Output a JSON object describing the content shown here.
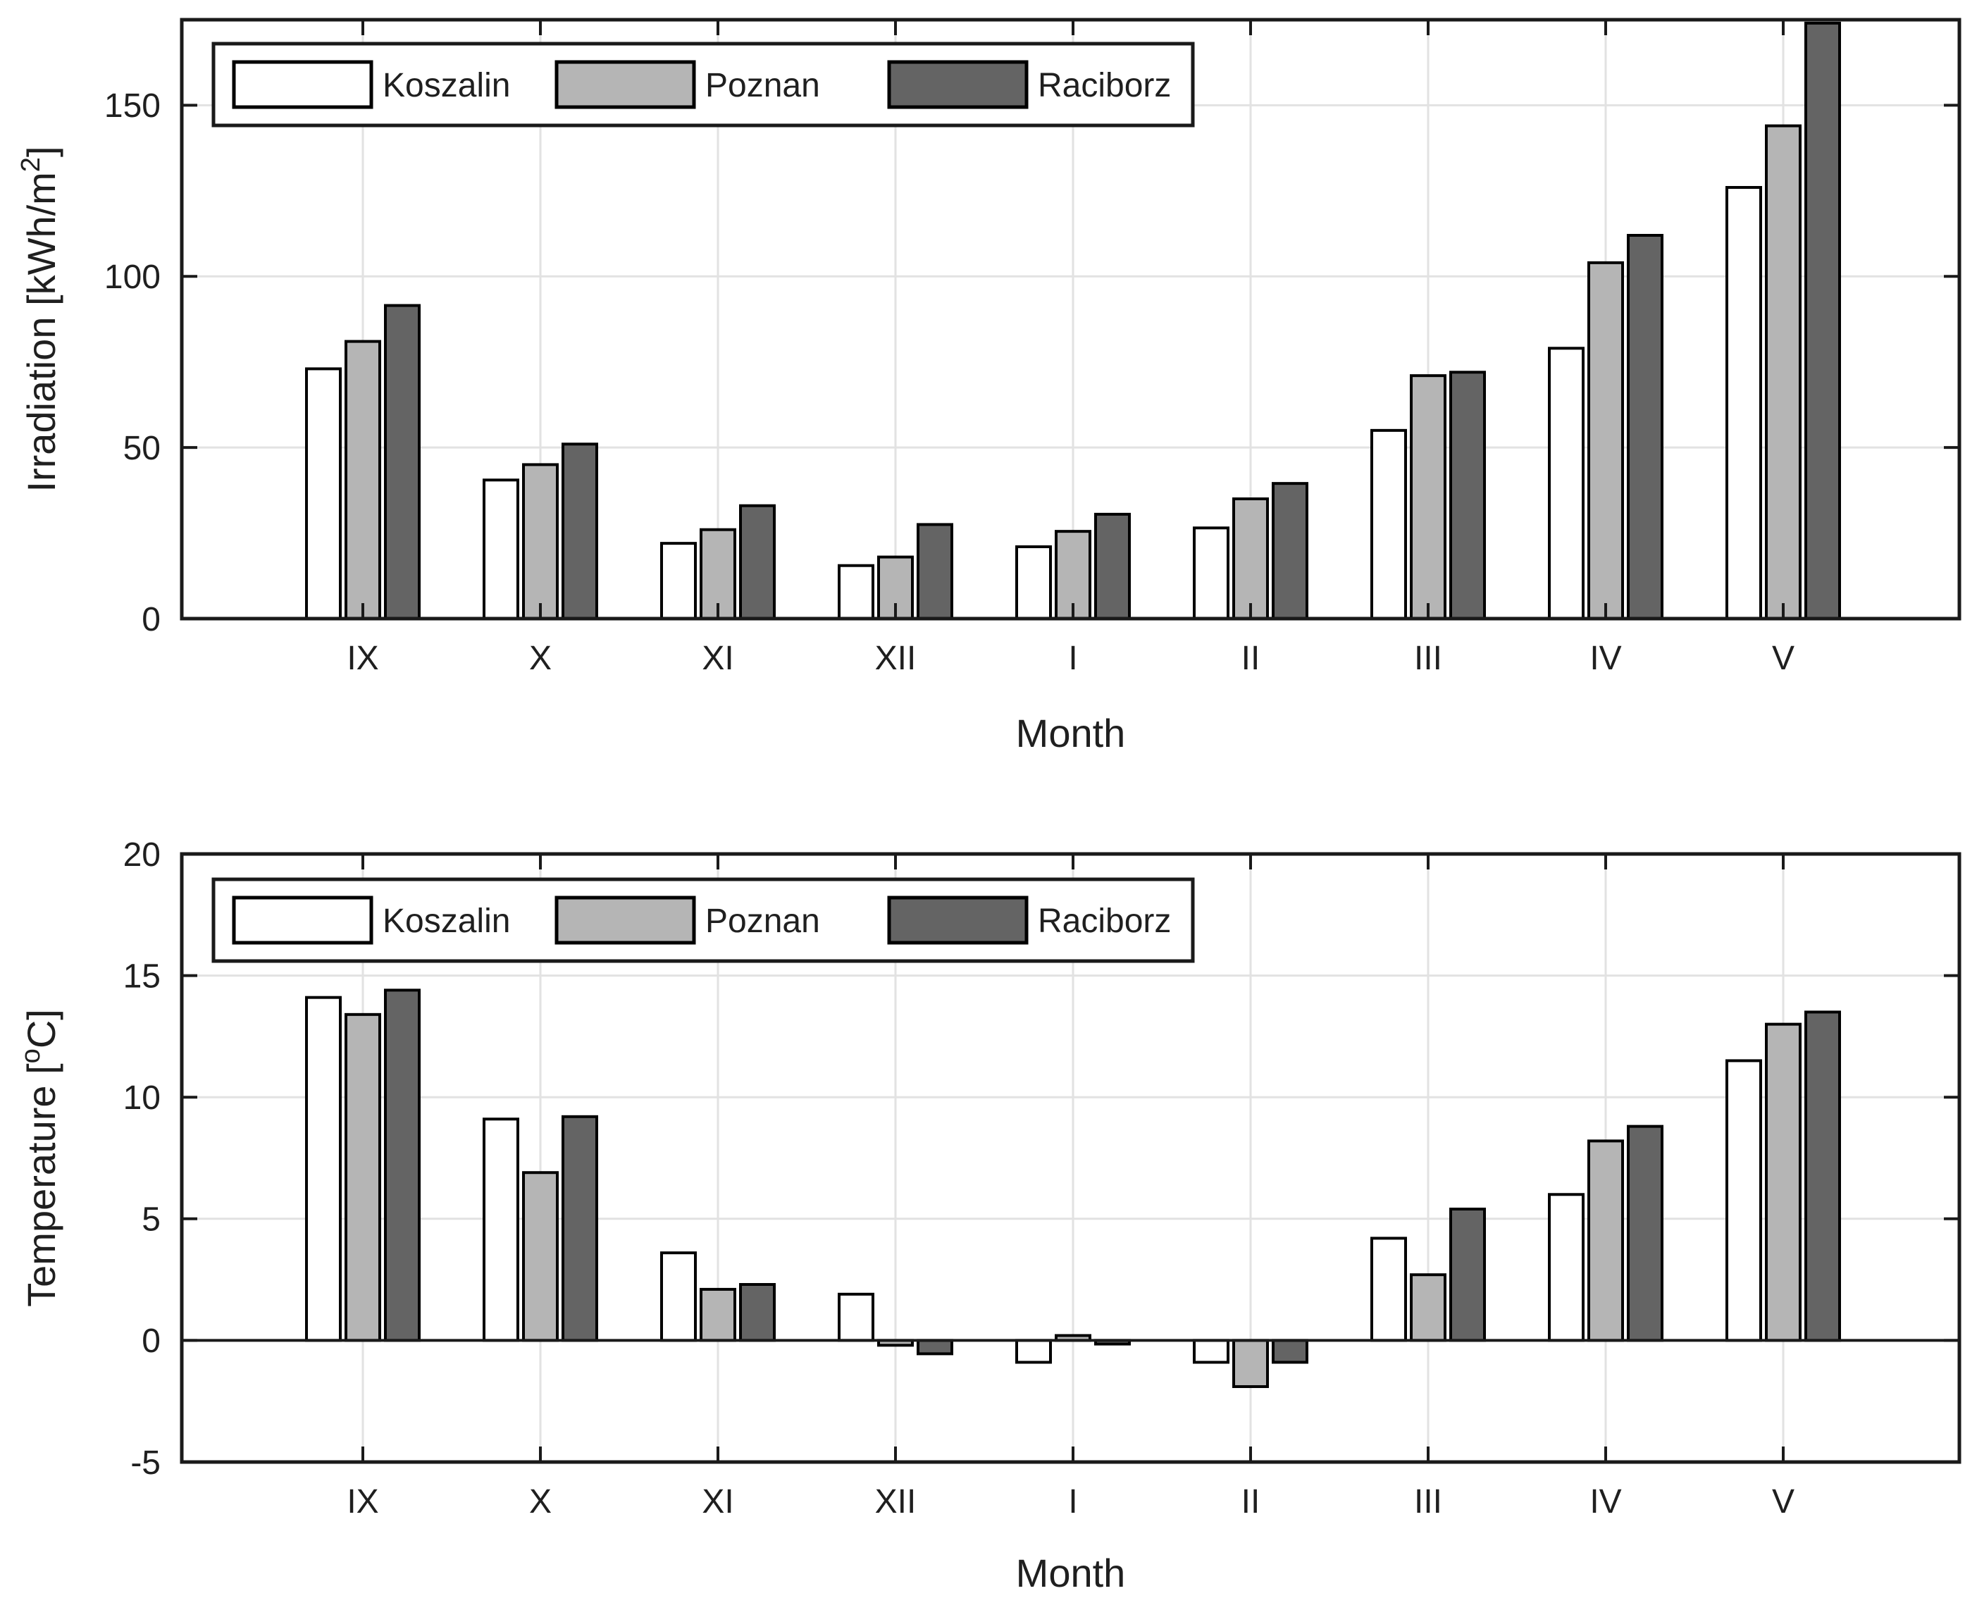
{
  "figure": {
    "background": "#ffffff",
    "text_color": "#1f1f1f",
    "grid_color": "#e2e2e2",
    "box_color": "#1a1a1a",
    "bar_edge_color": "#000000"
  },
  "legend": {
    "labels": [
      "Koszalin",
      "Poznan",
      "Raciborz"
    ],
    "swatch_colors": [
      "#ffffff",
      "#b5b5b5",
      "#646464"
    ]
  },
  "chart_data": [
    {
      "type": "bar",
      "title": "",
      "xlabel": "Month",
      "ylabel": "Irradiation [kWh/m2]",
      "ylabel_rich": {
        "pre": "Irradiation [kWh/m",
        "sup": "2",
        "post": "]"
      },
      "categories": [
        "IX",
        "X",
        "XI",
        "XII",
        "I",
        "II",
        "III",
        "IV",
        "V"
      ],
      "series": [
        {
          "name": "Koszalin",
          "color": "#ffffff",
          "values": [
            73,
            40.5,
            22,
            15.5,
            21,
            26.5,
            55,
            79,
            126
          ]
        },
        {
          "name": "Poznan",
          "color": "#b5b5b5",
          "values": [
            81,
            45,
            26,
            18,
            25.5,
            35,
            71,
            104,
            144
          ]
        },
        {
          "name": "Raciborz",
          "color": "#646464",
          "values": [
            91.5,
            51,
            33,
            27.5,
            30.5,
            39.5,
            72,
            112,
            174
          ]
        }
      ],
      "ylim": [
        0,
        175
      ],
      "yticks": [
        0,
        50,
        100,
        150
      ],
      "grid": true,
      "zero_line": false,
      "legend_position": "top-left-horizontal"
    },
    {
      "type": "bar",
      "title": "",
      "xlabel": "Month",
      "ylabel": "Temperature [oC]",
      "ylabel_rich": {
        "pre": "Temperature [",
        "sup": "o",
        "post": "C]"
      },
      "categories": [
        "IX",
        "X",
        "XI",
        "XII",
        "I",
        "II",
        "III",
        "IV",
        "V"
      ],
      "series": [
        {
          "name": "Koszalin",
          "color": "#ffffff",
          "values": [
            14.1,
            9.1,
            3.6,
            1.9,
            -0.9,
            -0.9,
            4.2,
            6.0,
            11.5
          ]
        },
        {
          "name": "Poznan",
          "color": "#b5b5b5",
          "values": [
            13.4,
            6.9,
            2.1,
            -0.2,
            0.2,
            -1.9,
            2.7,
            8.2,
            13.0
          ]
        },
        {
          "name": "Raciborz",
          "color": "#646464",
          "values": [
            14.4,
            9.2,
            2.3,
            -0.55,
            -0.15,
            -0.9,
            5.4,
            8.8,
            13.5
          ]
        }
      ],
      "ylim": [
        -5,
        20
      ],
      "yticks": [
        -5,
        0,
        5,
        10,
        15,
        20
      ],
      "grid": true,
      "zero_line": true,
      "legend_position": "top-left-horizontal"
    }
  ]
}
